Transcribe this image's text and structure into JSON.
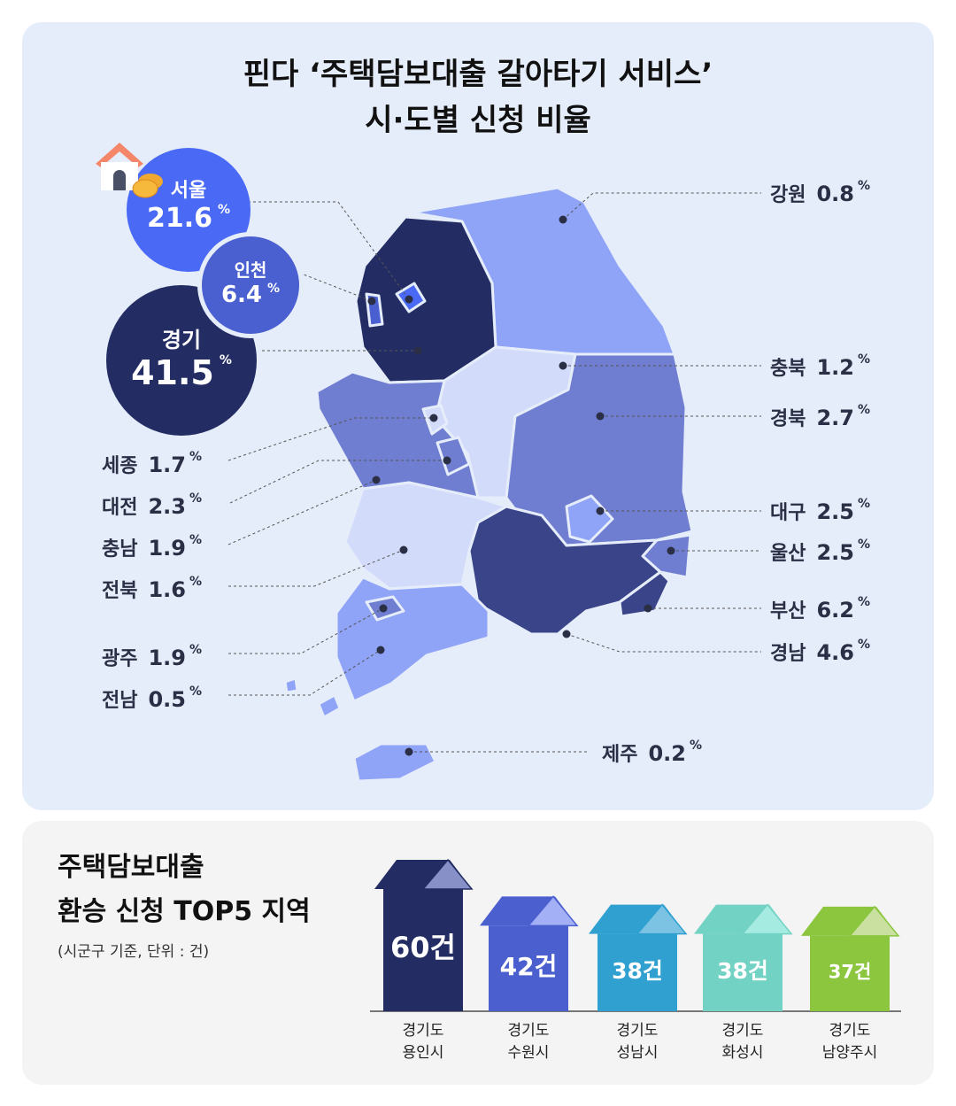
{
  "title_line1": "핀다 ‘주택담보대출 갈아타기 서비스’",
  "title_line2": "시·도별 신청 비율",
  "percent_sign": "%",
  "icons": [
    "house-icon",
    "coin-icon"
  ],
  "chart_data": [
    {
      "type": "choropleth-map",
      "title": "핀다 ‘주택담보대출 갈아타기 서비스’ 시·도별 신청 비율",
      "unit": "%",
      "regions": [
        {
          "name": "서울",
          "value": "21.6",
          "color": "#4a6af5"
        },
        {
          "name": "인천",
          "value": "6.4",
          "color": "#4a5fd0"
        },
        {
          "name": "경기",
          "value": "41.5",
          "color": "#232d63"
        },
        {
          "name": "강원",
          "value": "0.8",
          "color": "#8fa3f7"
        },
        {
          "name": "충북",
          "value": "1.2",
          "color": "#d3dbfb"
        },
        {
          "name": "경북",
          "value": "2.7",
          "color": "#6f7ed0"
        },
        {
          "name": "대구",
          "value": "2.5",
          "color": "#8fa3f7"
        },
        {
          "name": "울산",
          "value": "2.5",
          "color": "#6f7ed0"
        },
        {
          "name": "부산",
          "value": "6.2",
          "color": "#3a4488"
        },
        {
          "name": "경남",
          "value": "4.6",
          "color": "#3a4488"
        },
        {
          "name": "세종",
          "value": "1.7",
          "color": "#d3dbfb"
        },
        {
          "name": "대전",
          "value": "2.3",
          "color": "#6f7ed0"
        },
        {
          "name": "충남",
          "value": "1.9",
          "color": "#6f7ed0"
        },
        {
          "name": "전북",
          "value": "1.6",
          "color": "#d3dbfb"
        },
        {
          "name": "광주",
          "value": "1.9",
          "color": "#6f7ed0"
        },
        {
          "name": "전남",
          "value": "0.5",
          "color": "#8fa3f7"
        },
        {
          "name": "제주",
          "value": "0.2",
          "color": "#8fa3f7"
        }
      ]
    },
    {
      "type": "bar",
      "title": "주택담보대출 환승 신청 TOP5 지역",
      "title_line1": "주택담보대출",
      "title_line2": "환승 신청 TOP5 지역",
      "subtitle": "(시군구 기준, 단위 : 건)",
      "categories": [
        [
          "경기도",
          "용인시"
        ],
        [
          "경기도",
          "수원시"
        ],
        [
          "경기도",
          "성남시"
        ],
        [
          "경기도",
          "화성시"
        ],
        [
          "경기도",
          "남양주시"
        ]
      ],
      "values": [
        60,
        42,
        38,
        38,
        37
      ],
      "value_labels": [
        "60건",
        "42건",
        "38건",
        "38건",
        "37건"
      ],
      "colors": [
        "#232d63",
        "#4b5fcf",
        "#2fa0d0",
        "#72d2c4",
        "#8cc63f"
      ],
      "roof_colors": [
        "#8890c8",
        "#a4b0f5",
        "#7cc3e3",
        "#a6ebe2",
        "#c9e0a0"
      ]
    }
  ]
}
